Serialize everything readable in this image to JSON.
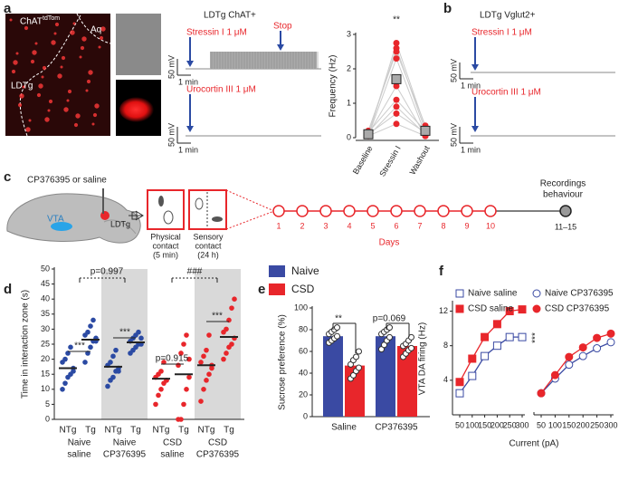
{
  "panel_letters": [
    "a",
    "b",
    "c",
    "d",
    "e",
    "f"
  ],
  "panel_a": {
    "image_label": "ChAT",
    "image_label_sup": "tdTom",
    "aq": "Aq",
    "region": "LDTg",
    "trace_title": "LDTg ChAT+",
    "drug1": "Stressin I 1 μM",
    "stop": "Stop",
    "drug2": "Urocortin III 1 μM",
    "scale_v": "50 mV",
    "scale_t": "1 min"
  },
  "panel_b": {
    "trace_title": "LDTg Vglut2+",
    "drug1": "Stressin I 1 μM",
    "drug2": "Urocortin III 1 μM",
    "scale_v": "50 mV",
    "scale_t": "1 min"
  },
  "panel_c": {
    "treatment": "CP376395 or saline",
    "vta": "VTA",
    "ldtg": "LDTg",
    "box1": [
      "Physical",
      "contact",
      "(5 min)"
    ],
    "box2": [
      "Sensory",
      "contact",
      "(24 h)"
    ],
    "days": [
      "1",
      "2",
      "3",
      "4",
      "5",
      "6",
      "7",
      "8",
      "9",
      "10",
      "11–15"
    ],
    "days_label": "Days",
    "endpoint": [
      "Recordings",
      "behaviour"
    ]
  },
  "chart_data": [
    {
      "type": "dot",
      "y_label": "Frequency (Hz)",
      "categories": [
        "Baseline",
        "Stressin I",
        "Washout"
      ],
      "values": [
        0.1,
        1.7,
        0.2
      ],
      "cells": [
        [
          0.05,
          2.75,
          0.3
        ],
        [
          0.1,
          2.6,
          0.2
        ],
        [
          0.2,
          2.5,
          0.35
        ],
        [
          0.05,
          2.3,
          0.1
        ],
        [
          0.1,
          1.5,
          0.05
        ],
        [
          0.15,
          1.1,
          0.2
        ],
        [
          0.05,
          0.9,
          0.1
        ],
        [
          0.1,
          0.7,
          0.15
        ],
        [
          0.05,
          0.4,
          0.05
        ]
      ],
      "color": "#e8262b",
      "ylim": [
        0,
        3
      ],
      "yticks": [
        0,
        1,
        2,
        3
      ],
      "annotation": "**"
    },
    {
      "type": "strip",
      "y_label": "Time in interaction zone (s)",
      "categories": [
        "NTg",
        "Tg",
        "NTg",
        "Tg",
        "NTg",
        "Tg",
        "NTg",
        "Tg"
      ],
      "groups": [
        [
          "Naive",
          "saline"
        ],
        [
          "Naive",
          "CP376395"
        ],
        [
          "CSD",
          "saline"
        ],
        [
          "CSD",
          "CP376395"
        ]
      ],
      "group_colors": [
        "#2b4aa3",
        "#2b4aa3",
        "#e8262b",
        "#e8262b"
      ],
      "shaded": [
        false,
        true,
        false,
        true
      ],
      "values": [
        17,
        26.5,
        17.5,
        25.6,
        13.5,
        15,
        18,
        27.4
      ],
      "points": [
        [
          10,
          12,
          14,
          15,
          17,
          19,
          20,
          22,
          24,
          16
        ],
        [
          19,
          22,
          24,
          26,
          27,
          28,
          29,
          31,
          33,
          26
        ],
        [
          11,
          13,
          14,
          16,
          17,
          18,
          19,
          21,
          23,
          16
        ],
        [
          22,
          23,
          24,
          25,
          25,
          26,
          27,
          28,
          29,
          27
        ],
        [
          5,
          8,
          10,
          12,
          13,
          14,
          15,
          16,
          19,
          13
        ],
        [
          0,
          0,
          5,
          10,
          14,
          18,
          22,
          25,
          28,
          20
        ],
        [
          6,
          10,
          13,
          15,
          17,
          19,
          21,
          23,
          28,
          18
        ],
        [
          20,
          22,
          24,
          25,
          27,
          29,
          30,
          33,
          37,
          40
        ]
      ],
      "ylim": [
        0,
        50
      ],
      "yticks": [
        0,
        5,
        10,
        15,
        20,
        25,
        30,
        35,
        40,
        45,
        50
      ],
      "annotations": [
        "***",
        "p=0.997",
        "***",
        "###",
        "p=0.915",
        "***"
      ]
    },
    {
      "type": "bar",
      "y_label": "Sucrose preference (%)",
      "categories": [
        "Saline",
        "CP376395"
      ],
      "series": [
        {
          "name": "Naive",
          "color": "#3a4aa3",
          "values": [
            74,
            74
          ],
          "points": [
            [
              68,
              70,
              72,
              74,
              76,
              78,
              80,
              82
            ],
            [
              62,
              66,
              70,
              73,
              76,
              78,
              80,
              82
            ]
          ]
        },
        {
          "name": "CSD",
          "color": "#e8262b",
          "values": [
            47,
            65
          ],
          "points": [
            [
              35,
              38,
              42,
              45,
              48,
              52,
              55,
              60
            ],
            [
              55,
              58,
              61,
              63,
              65,
              67,
              70,
              73
            ]
          ]
        }
      ],
      "ylim": [
        0,
        100
      ],
      "yticks": [
        0,
        20,
        40,
        60,
        80,
        100
      ],
      "annotations": [
        "**",
        "p=0.069"
      ]
    },
    {
      "type": "line",
      "y_label": "VTA DA firing (Hz)",
      "x_label": "Current (pA)",
      "ylim": [
        0,
        13
      ],
      "yticks": [
        4,
        8,
        12
      ],
      "annotation": "***",
      "subplots": [
        {
          "x": [
            50,
            100,
            150,
            200,
            250,
            300
          ],
          "xlim": [
            50,
            300
          ],
          "xticks": [
            50,
            100,
            150,
            200,
            250,
            300
          ],
          "series": [
            {
              "name": "Naive saline",
              "color": "#3a4aa3",
              "marker": "square",
              "filled": false,
              "values": [
                2.5,
                4.5,
                6.8,
                8,
                9,
                9
              ]
            },
            {
              "name": "CSD saline",
              "color": "#e8262b",
              "marker": "square",
              "filled": true,
              "values": [
                3.8,
                6.5,
                9,
                10.5,
                12,
                12.2
              ]
            }
          ]
        },
        {
          "x": [
            50,
            100,
            150,
            200,
            250,
            300
          ],
          "xlim": [
            50,
            300
          ],
          "xticks": [
            50,
            100,
            150,
            200,
            250,
            300
          ],
          "series": [
            {
              "name": "Naive CP376395",
              "color": "#3a4aa3",
              "marker": "circle",
              "filled": false,
              "values": [
                2.5,
                4.2,
                5.8,
                6.8,
                7.7,
                8.4
              ]
            },
            {
              "name": "CSD CP376395",
              "color": "#e8262b",
              "marker": "circle",
              "filled": true,
              "values": [
                2.5,
                4.6,
                6.7,
                7.8,
                8.9,
                9.4
              ]
            }
          ]
        }
      ]
    }
  ]
}
